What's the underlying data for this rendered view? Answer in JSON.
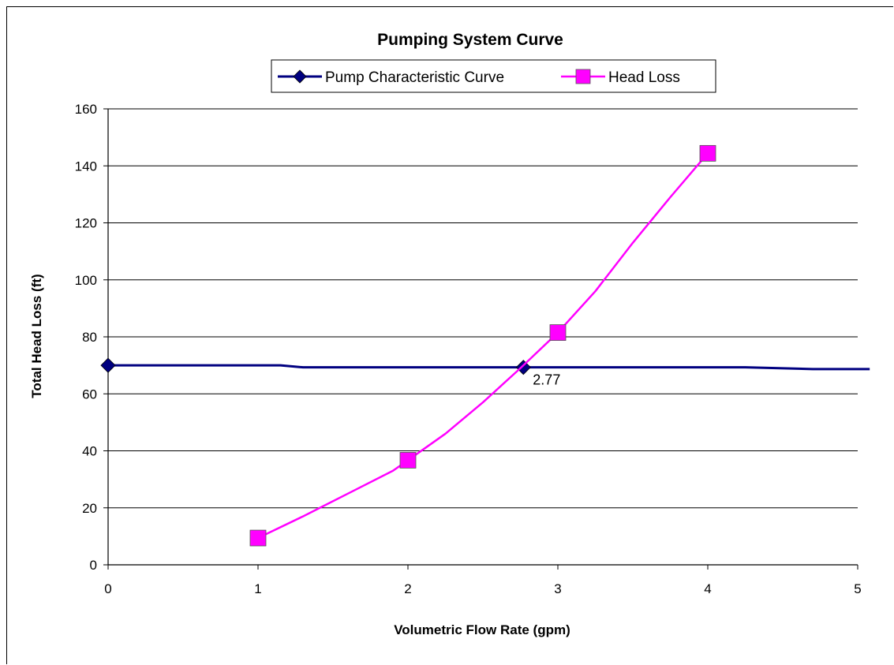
{
  "colors": {
    "pump": "#000080",
    "head_loss": "#FF00FF",
    "grid": "#000000",
    "background": "#FFFFFF"
  },
  "chart_data": {
    "type": "line",
    "title": "Pumping System Curve",
    "xlabel": "Volumetric Flow Rate (gpm)",
    "ylabel": "Total Head Loss (ft)",
    "xlim": [
      0,
      5
    ],
    "ylim": [
      0,
      160
    ],
    "x_ticks": [
      "0",
      "1",
      "2",
      "3",
      "4",
      "5"
    ],
    "y_ticks": [
      "0",
      "20",
      "40",
      "60",
      "80",
      "100",
      "120",
      "140",
      "160"
    ],
    "grid": "horizontal",
    "legend_position": "top",
    "series": [
      {
        "name": "Pump Characteristic Curve",
        "marker": "diamond",
        "color": "#000080",
        "line": [
          [
            0,
            70
          ],
          [
            1.15,
            70
          ],
          [
            1.3,
            69.3
          ],
          [
            2.77,
            69.3
          ],
          [
            4.25,
            69.3
          ],
          [
            4.7,
            68.7
          ],
          [
            5.08,
            68.7
          ]
        ],
        "markers": [
          [
            0,
            70
          ],
          [
            2.77,
            69.3
          ]
        ]
      },
      {
        "name": "Head Loss",
        "marker": "square",
        "color": "#FF00FF",
        "line": [
          [
            1,
            9.4
          ],
          [
            1.3,
            17
          ],
          [
            1.6,
            25
          ],
          [
            1.9,
            33
          ],
          [
            2,
            36.7
          ],
          [
            2.25,
            46
          ],
          [
            2.5,
            57
          ],
          [
            2.75,
            69
          ],
          [
            3,
            81.5
          ],
          [
            3.25,
            96
          ],
          [
            3.5,
            113
          ],
          [
            3.75,
            129
          ],
          [
            4,
            144.4
          ]
        ],
        "markers": [
          [
            1,
            9.4
          ],
          [
            2,
            36.7
          ],
          [
            3,
            81.5
          ],
          [
            4,
            144.4
          ]
        ]
      }
    ],
    "annotations": [
      {
        "text": "2.77",
        "x": 2.77,
        "y": 69.3
      }
    ]
  }
}
